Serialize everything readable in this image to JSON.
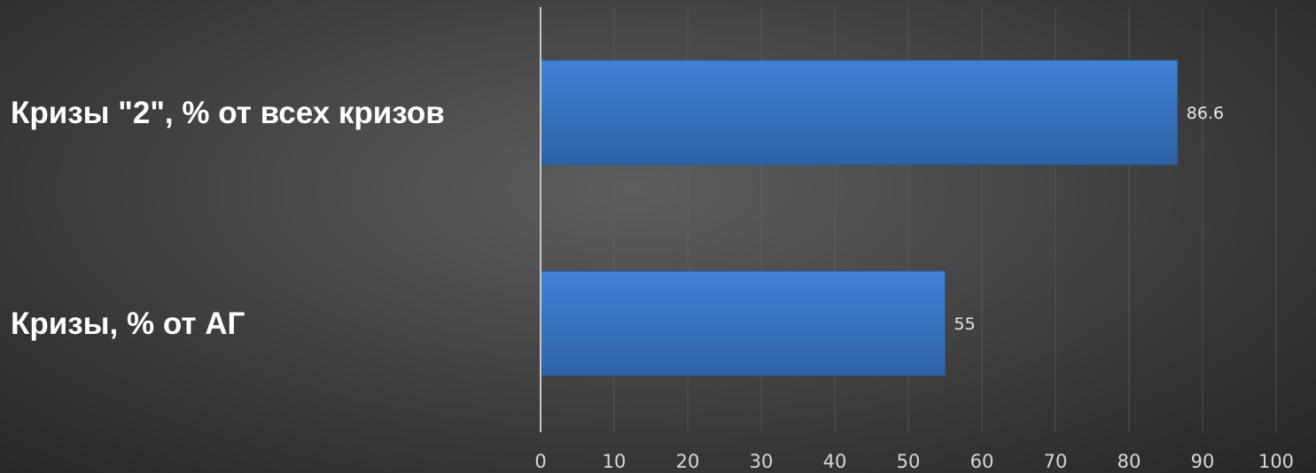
{
  "chart_data": {
    "type": "bar",
    "orientation": "horizontal",
    "categories": [
      "Кризы \"2\", % от всех кризов",
      "Кризы, % от АГ"
    ],
    "values": [
      86.6,
      55
    ],
    "data_labels": [
      "86.6",
      "55"
    ],
    "title": "",
    "xlabel": "",
    "ylabel": "",
    "xlim": [
      0,
      100
    ],
    "x_ticks": [
      "0",
      "10",
      "20",
      "30",
      "40",
      "50",
      "60",
      "70",
      "80",
      "90",
      "100"
    ],
    "grid": true,
    "legend": "none",
    "colors": {
      "bar": "#3a78c9",
      "bar_dark": "#2e5f9e",
      "label": "#ffffff",
      "tick": "#d8d8d8"
    }
  }
}
